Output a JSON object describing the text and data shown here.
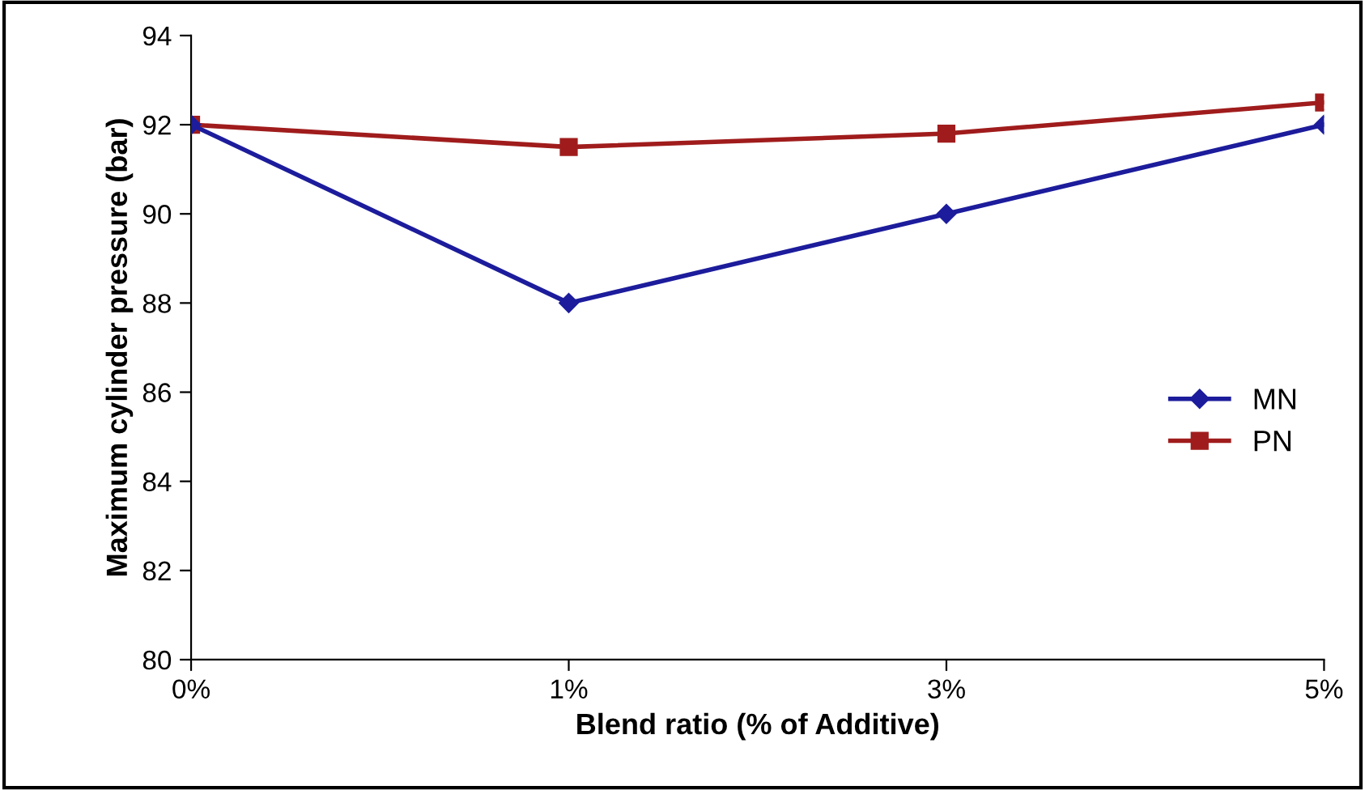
{
  "chart_data": {
    "type": "line",
    "xlabel": "Blend ratio (% of Additive)",
    "ylabel": "Maximum cylinder pressure (bar)",
    "categories": [
      "0%",
      "1%",
      "3%",
      "5%"
    ],
    "series": [
      {
        "name": "MN",
        "color": "#1c1c9c",
        "marker": "diamond",
        "values": [
          92,
          88,
          90,
          92
        ]
      },
      {
        "name": "PN",
        "color": "#a01c1c",
        "marker": "square",
        "values": [
          92,
          91.5,
          91.8,
          92.5
        ]
      }
    ],
    "ylim": [
      80,
      94
    ],
    "yticks": [
      80,
      82,
      84,
      86,
      88,
      90,
      92,
      94
    ],
    "grid": false,
    "legend": "right",
    "line_style": "solid"
  }
}
